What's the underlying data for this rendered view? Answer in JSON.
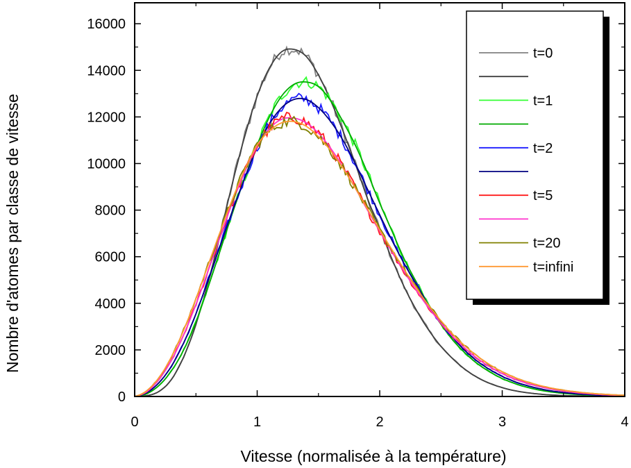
{
  "chart_data": {
    "type": "line",
    "xlabel": "Vitesse (normalisée à la température)",
    "ylabel": "Nombre d'atomes par classe de vitesse",
    "xlim": [
      0,
      4
    ],
    "ylim": [
      0,
      16900
    ],
    "xticks": [
      0,
      1,
      2,
      3,
      4
    ],
    "yticks": [
      0,
      2000,
      4000,
      6000,
      8000,
      10000,
      12000,
      14000,
      16000
    ],
    "xtick_labels": [
      "0",
      "1",
      "2",
      "3",
      "4"
    ],
    "ytick_labels": [
      "0",
      "2000",
      "4000",
      "6000",
      "8000",
      "10000",
      "12000",
      "14000",
      "16000"
    ],
    "grid": false,
    "legend_position": "top-right",
    "x": [
      0,
      0.1,
      0.2,
      0.3,
      0.4,
      0.5,
      0.6,
      0.7,
      0.8,
      0.9,
      1.0,
      1.1,
      1.2,
      1.3,
      1.4,
      1.5,
      1.6,
      1.7,
      1.8,
      1.9,
      2.0,
      2.1,
      2.2,
      2.3,
      2.4,
      2.5,
      2.6,
      2.7,
      2.8,
      2.9,
      3.0,
      3.1,
      3.2,
      3.3,
      3.4,
      3.5,
      3.6,
      3.7,
      3.8,
      3.9,
      4.0
    ],
    "series": [
      {
        "name": "t=0",
        "color": "#808080",
        "noisy": true,
        "values": [
          0,
          35,
          220,
          730,
          1700,
          3100,
          4900,
          7000,
          9200,
          11200,
          12900,
          14100,
          14800,
          14900,
          14600,
          13800,
          12700,
          11400,
          10000,
          8500,
          7200,
          5900,
          4700,
          3700,
          2850,
          2150,
          1600,
          1150,
          810,
          560,
          380,
          250,
          165,
          105,
          65,
          40,
          25,
          15,
          9,
          5,
          3
        ]
      },
      {
        "name": "",
        "color": "#404040",
        "noisy": false,
        "values": [
          0,
          35,
          220,
          730,
          1700,
          3100,
          4900,
          7000,
          9200,
          11200,
          12900,
          14100,
          14800,
          14900,
          14600,
          13800,
          12700,
          11400,
          10000,
          8500,
          7200,
          5900,
          4700,
          3700,
          2850,
          2150,
          1600,
          1150,
          810,
          560,
          380,
          250,
          165,
          105,
          65,
          40,
          25,
          15,
          9,
          5,
          3
        ]
      },
      {
        "name": "t=1",
        "color": "#33ff33",
        "noisy": true,
        "values": [
          0,
          120,
          480,
          1100,
          2000,
          3200,
          4700,
          6300,
          7900,
          9400,
          10800,
          12000,
          12900,
          13400,
          13500,
          13300,
          12700,
          11800,
          10800,
          9600,
          8300,
          7100,
          5900,
          4900,
          3900,
          3100,
          2400,
          1850,
          1400,
          1050,
          770,
          560,
          400,
          280,
          195,
          135,
          92,
          62,
          42,
          28,
          19
        ]
      },
      {
        "name": "",
        "color": "#00aa00",
        "noisy": false,
        "values": [
          0,
          120,
          480,
          1100,
          2000,
          3200,
          4700,
          6300,
          7900,
          9400,
          10800,
          12000,
          12900,
          13400,
          13500,
          13300,
          12700,
          11800,
          10800,
          9600,
          8300,
          7100,
          5900,
          4900,
          3900,
          3100,
          2400,
          1850,
          1400,
          1050,
          770,
          560,
          400,
          280,
          195,
          135,
          92,
          62,
          42,
          28,
          19
        ]
      },
      {
        "name": "t=2",
        "color": "#1a1aff",
        "noisy": true,
        "values": [
          0,
          170,
          600,
          1300,
          2300,
          3550,
          5000,
          6500,
          8000,
          9400,
          10700,
          11700,
          12400,
          12750,
          12750,
          12400,
          11800,
          11000,
          10000,
          8900,
          7800,
          6700,
          5700,
          4800,
          3900,
          3150,
          2500,
          1950,
          1500,
          1150,
          860,
          640,
          470,
          340,
          240,
          170,
          118,
          82,
          56,
          38,
          26
        ]
      },
      {
        "name": "",
        "color": "#000080",
        "noisy": false,
        "values": [
          0,
          170,
          600,
          1300,
          2300,
          3550,
          5000,
          6500,
          8000,
          9400,
          10700,
          11700,
          12400,
          12750,
          12750,
          12400,
          11800,
          11000,
          10000,
          8900,
          7800,
          6700,
          5700,
          4800,
          3900,
          3150,
          2500,
          1950,
          1500,
          1150,
          860,
          640,
          470,
          340,
          240,
          170,
          118,
          82,
          56,
          38,
          26
        ]
      },
      {
        "name": "t=5",
        "color": "#ff1a1a",
        "noisy": true,
        "values": [
          0,
          210,
          740,
          1550,
          2650,
          3950,
          5400,
          6900,
          8350,
          9650,
          10750,
          11500,
          11900,
          11950,
          11750,
          11300,
          10650,
          9850,
          8950,
          8000,
          7100,
          6200,
          5350,
          4550,
          3800,
          3150,
          2550,
          2050,
          1620,
          1270,
          980,
          750,
          570,
          430,
          320,
          235,
          170,
          122,
          87,
          61,
          43
        ]
      },
      {
        "name": "",
        "color": "#ff33cc",
        "noisy": false,
        "values": [
          0,
          210,
          740,
          1550,
          2650,
          3950,
          5400,
          6900,
          8350,
          9650,
          10750,
          11500,
          11900,
          11950,
          11750,
          11300,
          10650,
          9850,
          8950,
          8000,
          7100,
          6200,
          5350,
          4550,
          3800,
          3150,
          2550,
          2050,
          1620,
          1270,
          980,
          750,
          570,
          430,
          320,
          235,
          170,
          122,
          87,
          61,
          43
        ]
      },
      {
        "name": "t=20",
        "color": "#808000",
        "noisy": true,
        "values": [
          0,
          250,
          820,
          1700,
          2850,
          4200,
          5650,
          7100,
          8500,
          9750,
          10800,
          11400,
          11750,
          11800,
          11600,
          11150,
          10550,
          9800,
          8950,
          8050,
          7150,
          6300,
          5450,
          4650,
          3900,
          3250,
          2650,
          2150,
          1720,
          1360,
          1060,
          820,
          630,
          480,
          360,
          270,
          200,
          145,
          105,
          76,
          55
        ]
      },
      {
        "name": "t=infini",
        "color": "#ff9933",
        "noisy": false,
        "values": [
          0,
          250,
          820,
          1700,
          2850,
          4200,
          5650,
          7100,
          8500,
          9750,
          10800,
          11400,
          11750,
          11800,
          11600,
          11150,
          10550,
          9800,
          8950,
          8050,
          7150,
          6300,
          5450,
          4650,
          3900,
          3250,
          2650,
          2150,
          1720,
          1360,
          1060,
          820,
          630,
          480,
          360,
          270,
          200,
          145,
          105,
          76,
          55
        ]
      }
    ]
  }
}
